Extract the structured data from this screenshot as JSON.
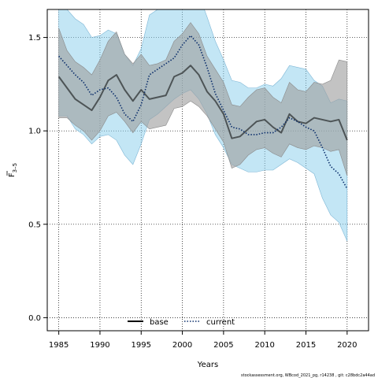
{
  "chart_data": {
    "type": "line",
    "xlabel": "Years",
    "ylabel_main": "F",
    "ylabel_sub": "3–5",
    "xlim": [
      1983.6,
      2022.6
    ],
    "ylim": [
      -0.07,
      1.65
    ],
    "x_ticks": [
      1985,
      1990,
      1995,
      2000,
      2005,
      2010,
      2015,
      2020
    ],
    "y_ticks": [
      0.0,
      0.5,
      1.0,
      1.5
    ],
    "y_tick_labels": [
      "0.0",
      "0.5",
      "1.0",
      "1.5"
    ],
    "grid": "dotted",
    "legend_position": "bottom-center",
    "years": [
      1985,
      1986,
      1987,
      1988,
      1989,
      1990,
      1991,
      1992,
      1993,
      1994,
      1995,
      1996,
      1997,
      1998,
      1999,
      2000,
      2001,
      2002,
      2003,
      2004,
      2005,
      2006,
      2007,
      2008,
      2009,
      2010,
      2011,
      2012,
      2013,
      2014,
      2015,
      2016,
      2017,
      2018,
      2019,
      2020
    ],
    "series": [
      {
        "name": "base",
        "line_style": "solid",
        "line_color": "#000000",
        "band_color": "#9e9e9e",
        "values": [
          1.29,
          1.23,
          1.17,
          1.14,
          1.11,
          1.18,
          1.27,
          1.3,
          1.22,
          1.16,
          1.22,
          1.17,
          1.18,
          1.19,
          1.29,
          1.31,
          1.35,
          1.3,
          1.21,
          1.16,
          1.09,
          0.96,
          0.97,
          1.01,
          1.05,
          1.06,
          1.02,
          0.99,
          1.09,
          1.05,
          1.04,
          1.07,
          1.06,
          1.05,
          1.06,
          0.95
        ],
        "lower": [
          1.07,
          1.07,
          1.03,
          1.0,
          0.95,
          1.0,
          1.08,
          1.1,
          1.05,
          0.99,
          1.05,
          1.01,
          1.02,
          1.03,
          1.12,
          1.13,
          1.16,
          1.13,
          1.08,
          1.01,
          0.94,
          0.8,
          0.82,
          0.87,
          0.9,
          0.91,
          0.88,
          0.86,
          0.93,
          0.91,
          0.9,
          0.92,
          0.91,
          0.89,
          0.9,
          0.76
        ],
        "upper": [
          1.55,
          1.43,
          1.37,
          1.34,
          1.3,
          1.38,
          1.48,
          1.53,
          1.41,
          1.36,
          1.41,
          1.35,
          1.36,
          1.38,
          1.48,
          1.52,
          1.58,
          1.52,
          1.4,
          1.33,
          1.26,
          1.14,
          1.13,
          1.18,
          1.22,
          1.23,
          1.18,
          1.15,
          1.26,
          1.22,
          1.21,
          1.26,
          1.25,
          1.27,
          1.38,
          1.37
        ]
      },
      {
        "name": "current",
        "line_style": "dotted",
        "line_color": "#0b2e6b",
        "band_color": "#87ceeb",
        "values": [
          1.4,
          1.35,
          1.3,
          1.26,
          1.19,
          1.22,
          1.23,
          1.18,
          1.09,
          1.05,
          1.14,
          1.3,
          1.33,
          1.36,
          1.39,
          1.46,
          1.51,
          1.46,
          1.34,
          1.2,
          1.11,
          1.02,
          1.01,
          0.98,
          0.98,
          0.99,
          0.99,
          1.02,
          1.07,
          1.05,
          1.02,
          1.0,
          0.91,
          0.81,
          0.77,
          0.69
        ],
        "lower": [
          1.08,
          1.08,
          1.01,
          0.98,
          0.93,
          0.97,
          0.98,
          0.95,
          0.87,
          0.82,
          0.93,
          1.06,
          1.09,
          1.13,
          1.17,
          1.2,
          1.22,
          1.17,
          1.09,
          0.98,
          0.91,
          0.82,
          0.8,
          0.78,
          0.78,
          0.79,
          0.79,
          0.82,
          0.85,
          0.83,
          0.8,
          0.77,
          0.64,
          0.55,
          0.51,
          0.41
        ],
        "upper": [
          1.68,
          1.65,
          1.6,
          1.57,
          1.5,
          1.51,
          1.54,
          1.52,
          1.41,
          1.35,
          1.44,
          1.62,
          1.65,
          1.68,
          1.72,
          1.75,
          1.78,
          1.73,
          1.61,
          1.48,
          1.38,
          1.27,
          1.26,
          1.23,
          1.23,
          1.25,
          1.24,
          1.28,
          1.35,
          1.34,
          1.33,
          1.27,
          1.24,
          1.15,
          1.17,
          1.16
        ]
      }
    ],
    "credit": "stockassessment.org, WBcod_2021_pg, r14238 , git: c28bdc2a44ad"
  }
}
